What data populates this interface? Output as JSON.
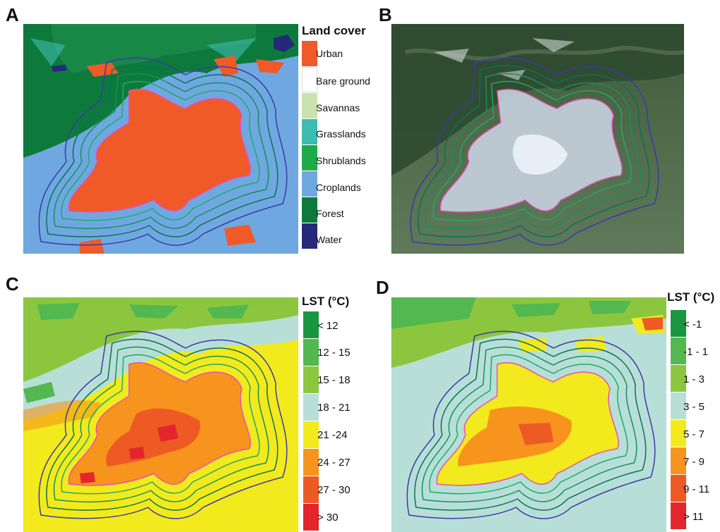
{
  "panels": [
    {
      "letter": "A",
      "legend_title": "Land cover",
      "legend": [
        {
          "label": "Urban",
          "color": "#f05a28"
        },
        {
          "label": "Bare ground",
          "color": "#ffffff"
        },
        {
          "label": "Savannas",
          "color": "#c9e3b0"
        },
        {
          "label": "Grasslands",
          "color": "#3dbcb0"
        },
        {
          "label": "Shrublands",
          "color": "#1faa4a"
        },
        {
          "label": "Croplands",
          "color": "#6fa8e0"
        },
        {
          "label": "Forest",
          "color": "#0d7a3c"
        },
        {
          "label": "Water",
          "color": "#27287a"
        }
      ]
    },
    {
      "letter": "B"
    },
    {
      "letter": "C",
      "legend_title": "LST (°C)",
      "legend": [
        {
          "label": "< 12",
          "color": "#1a9641"
        },
        {
          "label": "12 - 15",
          "color": "#52b84f"
        },
        {
          "label": "15 - 18",
          "color": "#8cc63f"
        },
        {
          "label": "18 - 21",
          "color": "#b7dfd7"
        },
        {
          "label": "21 -24",
          "color": "#f2ea1c"
        },
        {
          "label": "24 - 27",
          "color": "#f7941d"
        },
        {
          "label": "27 - 30",
          "color": "#ed5a24"
        },
        {
          "label": "> 30",
          "color": "#e4262c"
        }
      ]
    },
    {
      "letter": "D",
      "legend_title": "LST (°C)",
      "legend": [
        {
          "label": "< -1",
          "color": "#1a9641"
        },
        {
          "label": "-1 - 1",
          "color": "#52b84f"
        },
        {
          "label": "1 - 3",
          "color": "#8cc63f"
        },
        {
          "label": "3 - 5",
          "color": "#b7dfd7"
        },
        {
          "label": "5 - 7",
          "color": "#f2ea1c"
        },
        {
          "label": "7 - 9",
          "color": "#f7941d"
        },
        {
          "label": "9 - 11",
          "color": "#ed5a24"
        },
        {
          "label": "> 11",
          "color": "#e4262c"
        }
      ]
    }
  ],
  "boundary_colors": {
    "urban_edge": "#e84fb4",
    "buffer_1": "#1faa6a",
    "buffer_2": "#15905c",
    "buffer_3": "#0c6f5a",
    "outer_buffer": "#3a3aa8"
  }
}
